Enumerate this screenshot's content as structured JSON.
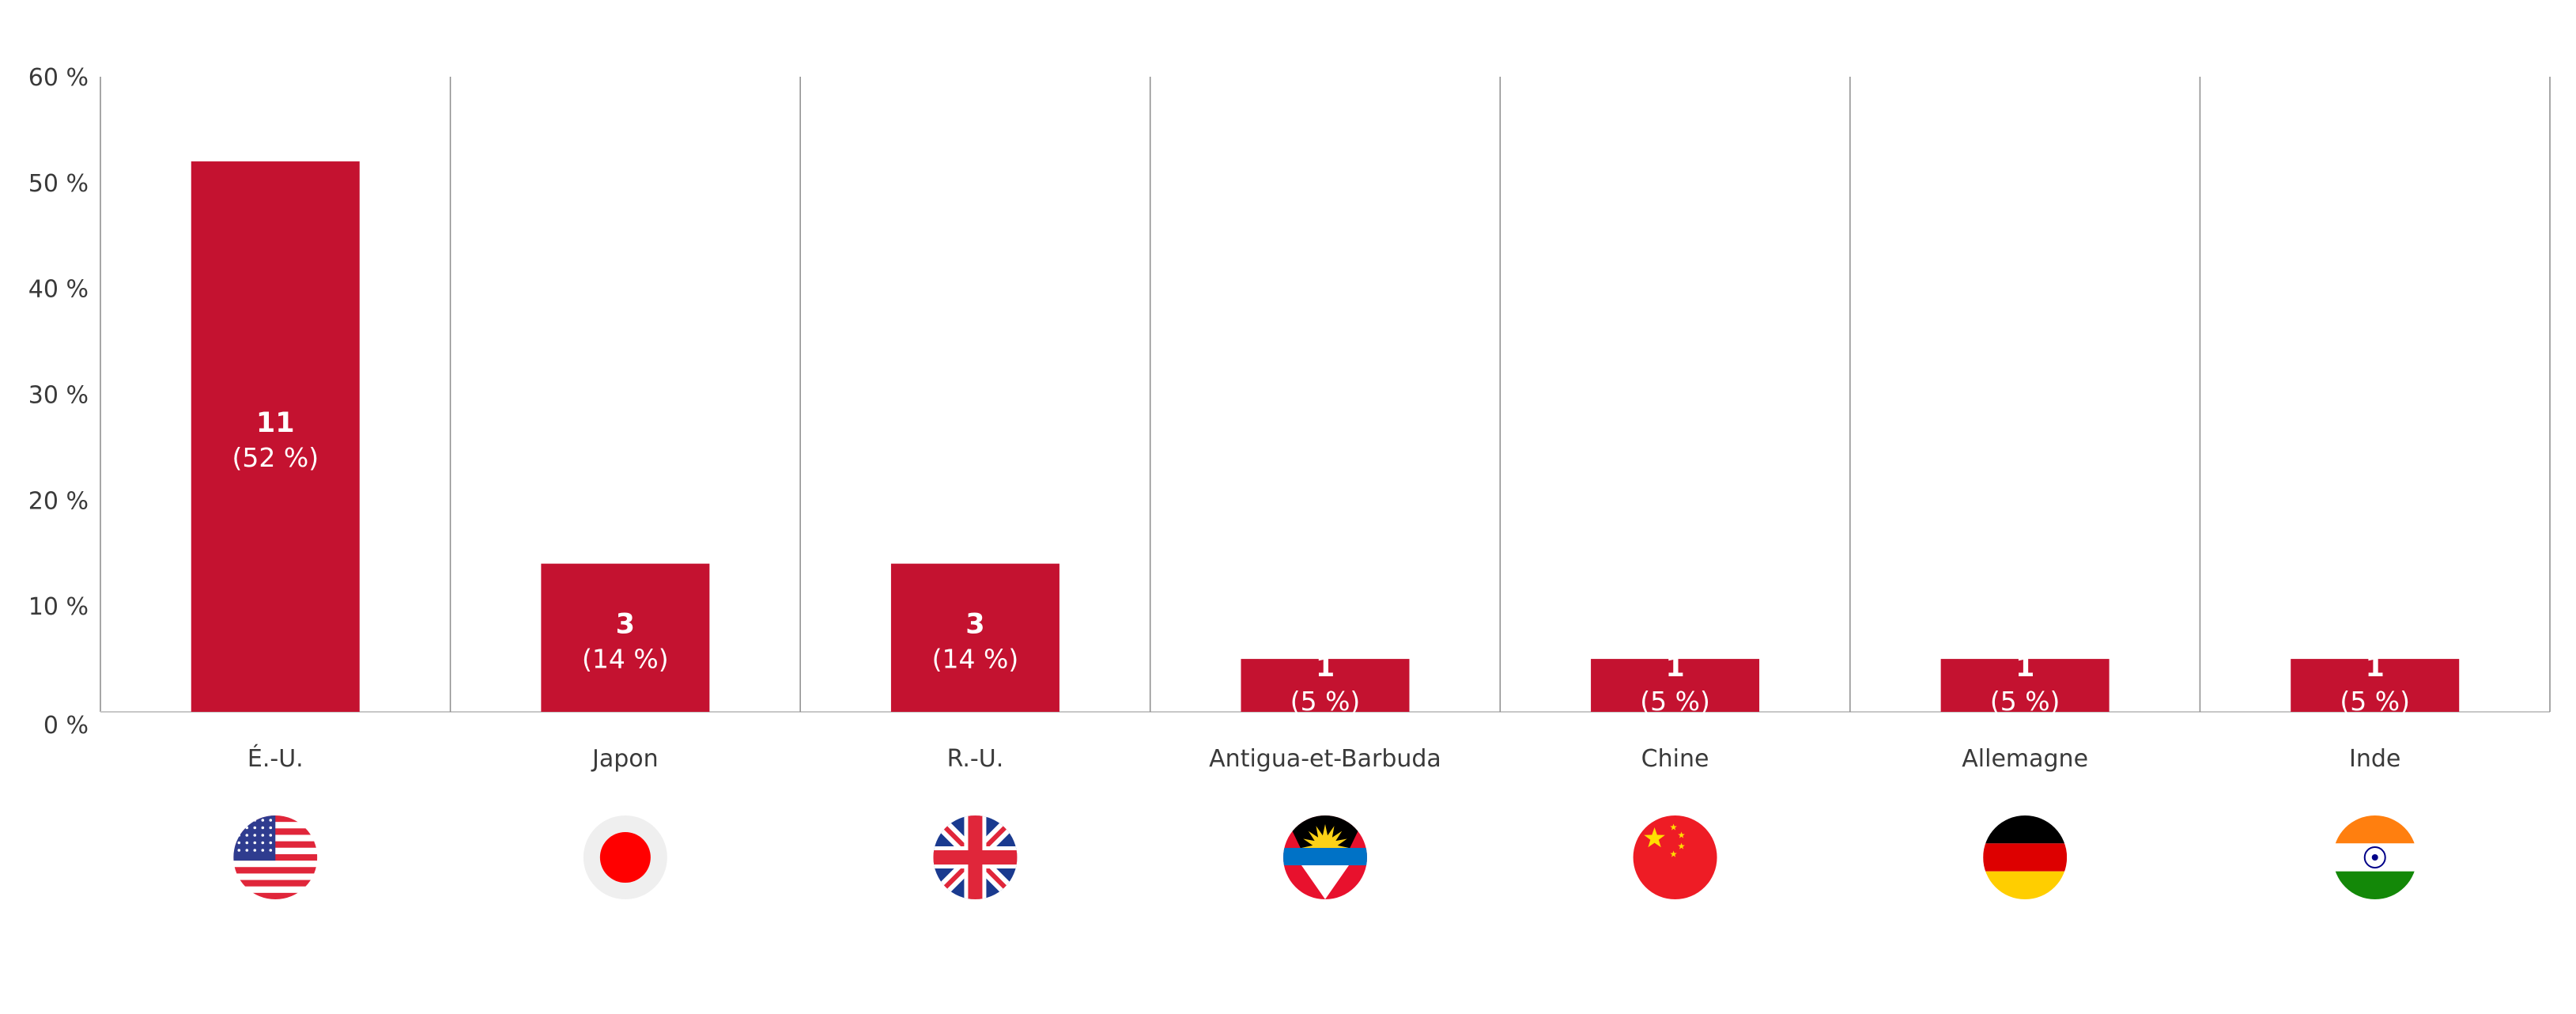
{
  "chart_data": {
    "type": "bar",
    "categories": [
      "É.-U.",
      "Japon",
      "R.-U.",
      "Antigua-et-Barbuda",
      "Chine",
      "Allemagne",
      "Inde"
    ],
    "values": [
      52,
      14,
      14,
      5,
      5,
      5,
      5
    ],
    "counts": [
      "11",
      "3",
      "3",
      "1",
      "1",
      "1",
      "1"
    ],
    "percent_labels": [
      "(52 %)",
      "(14 %)",
      "(14 %)",
      "(5 %)",
      "(5 %)",
      "(5 %)",
      "(5 %)"
    ],
    "flag_icons": [
      "usa-flag-icon",
      "japan-flag-icon",
      "uk-flag-icon",
      "antigua-barbuda-flag-icon",
      "china-flag-icon",
      "germany-flag-icon",
      "india-flag-icon"
    ],
    "y_ticks": [
      0,
      10,
      20,
      30,
      40,
      50,
      60
    ],
    "y_tick_labels": [
      "0 %",
      "10 %",
      "20 %",
      "30 %",
      "40 %",
      "50 %",
      "60 %"
    ],
    "ylim": [
      0,
      60
    ],
    "grid": false,
    "category_separators": true,
    "bar_color": "#c41230"
  }
}
